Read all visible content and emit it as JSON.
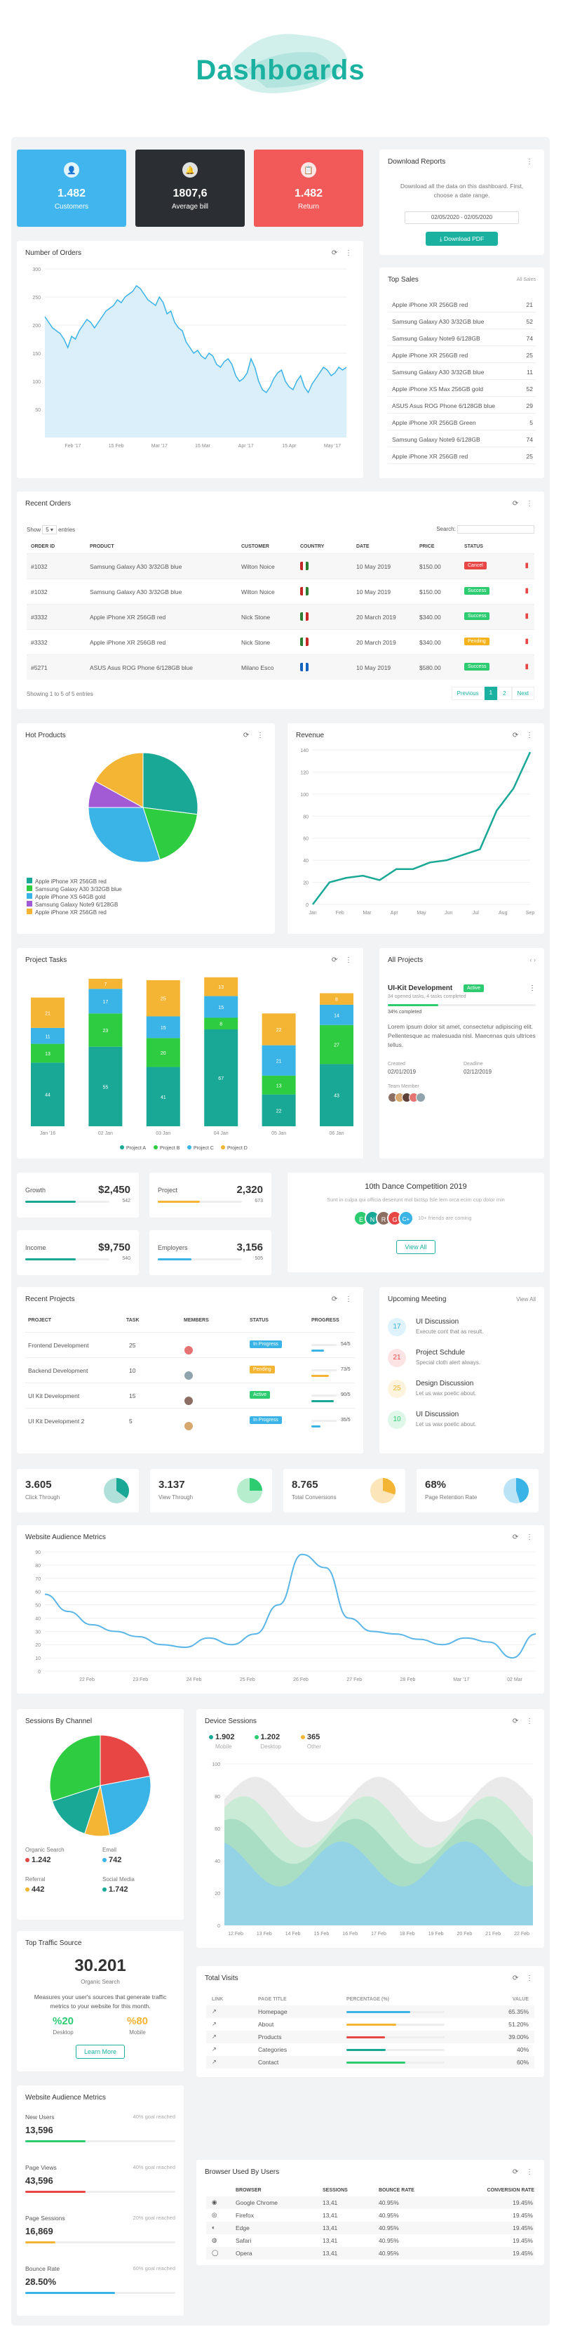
{
  "page_title": "Dashboards",
  "stats": [
    {
      "value": "1.482",
      "label": "Customers",
      "icon": "👤"
    },
    {
      "value": "1807,6",
      "label": "Average bill",
      "icon": "🔔"
    },
    {
      "value": "1.482",
      "label": "Return",
      "icon": "📋"
    }
  ],
  "download": {
    "title": "Download Reports",
    "desc": "Download all the data on this dashboard. First, choose a date range.",
    "date": "02/05/2020 - 02/05/2020",
    "button": "Download PDF"
  },
  "orders_chart": {
    "title": "Number of Orders",
    "yticks": [
      "300",
      "250",
      "200",
      "150",
      "100",
      "50"
    ],
    "xticks": [
      "Feb '17",
      "15 Feb",
      "Mar '17",
      "15 Mar",
      "Apr '17",
      "15 Apr",
      "May '17"
    ],
    "values": [
      215,
      205,
      195,
      190,
      185,
      175,
      160,
      180,
      175,
      190,
      200,
      210,
      205,
      195,
      205,
      215,
      225,
      230,
      235,
      245,
      240,
      250,
      255,
      260,
      270,
      265,
      255,
      245,
      240,
      235,
      250,
      240,
      220,
      225,
      205,
      195,
      190,
      170,
      160,
      150,
      155,
      145,
      140,
      150,
      145,
      130,
      125,
      135,
      140,
      130,
      110,
      100,
      105,
      115,
      140,
      125,
      100,
      85,
      80,
      90,
      105,
      115,
      120,
      100,
      90,
      85,
      100,
      110,
      90,
      80,
      95,
      105,
      115,
      125,
      120,
      110,
      115,
      125,
      120,
      125
    ]
  },
  "top_sales": {
    "title": "Top Sales",
    "all": "All Sales",
    "items": [
      {
        "n": "Apple iPhone XR 256GB red",
        "v": "21"
      },
      {
        "n": "Samsung Galaxy A30 3/32GB blue",
        "v": "52"
      },
      {
        "n": "Samsung Galaxy Note9 6/128GB",
        "v": "74"
      },
      {
        "n": "Apple iPhone XR 256GB red",
        "v": "25"
      },
      {
        "n": "Samsung Galaxy A30 3/32GB blue",
        "v": "11"
      },
      {
        "n": "Apple iPhone XS Max 256GB gold",
        "v": "52"
      },
      {
        "n": "ASUS Asus ROG Phone 6/128GB blue",
        "v": "29"
      },
      {
        "n": "Apple iPhone XR 256GB Green",
        "v": "5"
      },
      {
        "n": "Samsung Galaxy Note9 6/128GB",
        "v": "74"
      },
      {
        "n": "Apple iPhone XR 256GB red",
        "v": "25"
      }
    ]
  },
  "recent_orders": {
    "title": "Recent Orders",
    "show": "Show",
    "entries": "entries",
    "search": "Search:",
    "headers": [
      "ORDER ID",
      "PRODUCT",
      "CUSTOMER",
      "COUNTRY",
      "DATE",
      "PRICE",
      "STATUS"
    ],
    "rows": [
      {
        "id": "#1032",
        "p": "Samsung Galaxy A30 3/32GB blue",
        "c": "Wilton Noice",
        "d": "10 May 2019",
        "pr": "$150.00",
        "s": "Cancel",
        "sc": "#e84545",
        "f": [
          "#c62828",
          "#2e7d32"
        ]
      },
      {
        "id": "#1032",
        "p": "Samsung Galaxy A30 3/32GB blue",
        "c": "Wilton Noice",
        "d": "10 May 2019",
        "pr": "$150.00",
        "s": "Success",
        "sc": "#2ecc71",
        "f": [
          "#c62828",
          "#2e7d32"
        ]
      },
      {
        "id": "#3332",
        "p": "Apple iPhone XR 256GB red",
        "c": "Nick Stone",
        "d": "20 March 2019",
        "pr": "$340.00",
        "s": "Success",
        "sc": "#2ecc71",
        "f": [
          "#2e7d32",
          "#c62828"
        ]
      },
      {
        "id": "#3332",
        "p": "Apple iPhone XR 256GB red",
        "c": "Nick Stone",
        "d": "20 March 2019",
        "pr": "$340.00",
        "s": "Pending",
        "sc": "#f5b21b",
        "f": [
          "#2e7d32",
          "#c62828"
        ]
      },
      {
        "id": "#5271",
        "p": "ASUS Asus ROG Phone 6/128GB blue",
        "c": "Milano Esco",
        "d": "10 May 2019",
        "pr": "$580.00",
        "s": "Success",
        "sc": "#2ecc71",
        "f": [
          "#1565c0",
          "#1565c0"
        ]
      }
    ],
    "showing": "Showing 1 to 5 of 5 entries",
    "prev": "Previous",
    "p1": "1",
    "p2": "2",
    "next": "Next"
  },
  "hot_products": {
    "title": "Hot Products",
    "legend": [
      "Apple iPhone XR 256GB red",
      "Samsung Galaxy A30 3/32GB blue",
      "Apple iPhone XS 64GB gold",
      "Samsung Galaxy Note9 6/128GB",
      "Apple iPhone XR 256GB red"
    ],
    "colors": [
      "#1aa896",
      "#2ecc40",
      "#3ab3e6",
      "#a25bd5",
      "#f5b534"
    ],
    "values": [
      27,
      18,
      30,
      8,
      17
    ]
  },
  "revenue": {
    "title": "Revenue",
    "yticks": [
      "140",
      "120",
      "100",
      "80",
      "60",
      "40",
      "20",
      "0"
    ],
    "xticks": [
      "Jan",
      "Feb",
      "Mar",
      "Apr",
      "May",
      "Jun",
      "Jul",
      "Aug",
      "Sep"
    ],
    "values": [
      0,
      20,
      24,
      26,
      22,
      32,
      32,
      38,
      40,
      45,
      50,
      85,
      105,
      138
    ]
  },
  "tasks": {
    "title": "Project Tasks",
    "xticks": [
      "Jan '16",
      "02 Jan",
      "03 Jan",
      "04 Jan",
      "05 Jan",
      "06 Jan"
    ],
    "series": [
      {
        "name": "Project A",
        "color": "#1aa896",
        "values": [
          44,
          55,
          41,
          67,
          22,
          43
        ]
      },
      {
        "name": "Project B",
        "color": "#2ecc40",
        "values": [
          13,
          23,
          20,
          8,
          13,
          27
        ]
      },
      {
        "name": "Project C",
        "color": "#3ab3e6",
        "values": [
          11,
          17,
          15,
          15,
          21,
          14
        ]
      },
      {
        "name": "Project D",
        "color": "#f5b534",
        "values": [
          21,
          7,
          25,
          13,
          22,
          8
        ]
      }
    ]
  },
  "all_projects": {
    "title": "All Projects",
    "name": "UI-Kit Development",
    "status": "Active",
    "sub": "34 opened tasks, 4 tasks completed",
    "progress": "34% completed",
    "progress_val": 0.34,
    "desc": "Lorem ipsum dolor sit amet, consectetur adipiscing elit. Pellentesque ac malesuada nisl. Maecenas quis ultrices tellus.",
    "created_l": "Created",
    "created": "02/01/2019",
    "deadline_l": "Deadline",
    "deadline": "02/12/2019",
    "team_l": "Team Member"
  },
  "small_stats": [
    {
      "l": "Growth",
      "v": "$2,450",
      "s": "542",
      "c": "#1aa896",
      "p": 0.6
    },
    {
      "l": "Project",
      "v": "2,320",
      "s": "673",
      "c": "#f5b534",
      "p": 0.5
    },
    {
      "l": "Income",
      "v": "$9,750",
      "s": "540",
      "c": "#1aa896",
      "p": 0.6
    },
    {
      "l": "Employers",
      "v": "3,156",
      "s": "505",
      "c": "#3ab3e6",
      "p": 0.4
    }
  ],
  "competition": {
    "title": "10th Dance Competition 2019",
    "desc": "Sunt in culpa qui officia deserunt mol bictsp fsle lem orca ecim cup dolor min",
    "avatars": [
      "E",
      "N",
      "R",
      "G"
    ],
    "more": "C+",
    "joining": "10+ friends are coming",
    "button": "View All"
  },
  "recent_projects": {
    "title": "Recent Projects",
    "headers": [
      "PROJECT",
      "TASK",
      "MEMBERS",
      "STATUS",
      "PROGRESS"
    ],
    "rows": [
      {
        "p": "Frontend Development",
        "t": "25",
        "s": "In Progress",
        "sc": "#3ab3e6",
        "pc": "#3ab3e6",
        "pv": "54/5",
        "pp": 0.5
      },
      {
        "p": "Backend Development",
        "t": "10",
        "s": "Pending",
        "sc": "#f5b534",
        "pc": "#f5b534",
        "pv": "73/5",
        "pp": 0.7
      },
      {
        "p": "UI Kit Development",
        "t": "15",
        "s": "Active",
        "sc": "#2ecc71",
        "pc": "#1aa896",
        "pv": "90/5",
        "pp": 0.9
      },
      {
        "p": "UI Kit Development 2",
        "t": "5",
        "s": "In Progress",
        "sc": "#3ab3e6",
        "pc": "#3ab3e6",
        "pv": "35/5",
        "pp": 0.35
      }
    ]
  },
  "meetings": {
    "title": "Upcoming Meeting",
    "all": "View All",
    "items": [
      {
        "d": "17",
        "t": "UI Discussion",
        "s": "Execute cont that as result.",
        "c": "#3ab3e6",
        "bg": "#def3fb"
      },
      {
        "d": "21",
        "t": "Project Schdule",
        "s": "Special cloth alert always.",
        "c": "#e84545",
        "bg": "#fde4e4"
      },
      {
        "d": "25",
        "t": "Design Discussion",
        "s": "Let us wax poetic about.",
        "c": "#f5b534",
        "bg": "#fef3dc"
      },
      {
        "d": "10",
        "t": "UI Discussion",
        "s": "Let us wax poetic about.",
        "c": "#2ecc71",
        "bg": "#dff7e8"
      }
    ]
  },
  "mini": [
    {
      "v": "3.605",
      "l": "Click Through",
      "c": "#1aa896",
      "p": 0.35
    },
    {
      "v": "3.137",
      "l": "View Through",
      "c": "#2ecc71",
      "p": 0.25
    },
    {
      "v": "8.765",
      "l": "Total Conversions",
      "c": "#f5b534",
      "p": 0.3
    },
    {
      "v": "68%",
      "l": "Page Retention Rate",
      "c": "#3ab3e6",
      "p": 0.45
    }
  ],
  "audience": {
    "title": "Website Audience Metrics",
    "yticks": [
      "90",
      "80",
      "70",
      "60",
      "50",
      "40",
      "30",
      "20",
      "10",
      "0"
    ],
    "xticks": [
      "22 Feb",
      "23 Feb",
      "24 Feb",
      "25 Feb",
      "26 Feb",
      "27 Feb",
      "28 Feb",
      "Mar '17",
      "02 Mar"
    ],
    "values": [
      58,
      45,
      35,
      30,
      26,
      20,
      18,
      25,
      20,
      28,
      50,
      88,
      78,
      40,
      30,
      28,
      24,
      20,
      25,
      22,
      10,
      28
    ]
  },
  "sessions": {
    "title": "Sessions By Channel",
    "values": [
      22,
      25,
      8,
      15,
      30
    ],
    "colors": [
      "#e84545",
      "#3ab3e6",
      "#f5b534",
      "#1aa896",
      "#2ecc40"
    ],
    "items": [
      {
        "l": "Organic Search",
        "v": "1.242",
        "c": "#e84545"
      },
      {
        "l": "Email",
        "v": "742",
        "c": "#3ab3e6"
      },
      {
        "l": "Referral",
        "v": "442",
        "c": "#f5b534"
      },
      {
        "l": "Social Media",
        "v": "1.742",
        "c": "#1aa896"
      }
    ]
  },
  "device": {
    "title": "Device Sessions",
    "items": [
      {
        "v": "1.902",
        "l": "Mobile",
        "c": "#1aa896"
      },
      {
        "v": "1.202",
        "l": "Desktop",
        "c": "#2ecc71"
      },
      {
        "v": "365",
        "l": "Other",
        "c": "#f5b534"
      }
    ],
    "yticks": [
      "100",
      "80",
      "60",
      "40",
      "20",
      "0"
    ],
    "xticks": [
      "12 Feb",
      "13 Feb",
      "14 Feb",
      "15 Feb",
      "16 Feb",
      "17 Feb",
      "18 Feb",
      "19 Feb",
      "20 Feb",
      "21 Feb",
      "22 Feb"
    ]
  },
  "traffic": {
    "title": "Top Traffic Source",
    "value": "30.201",
    "label": "Organic Search",
    "desc": "Measures your user's sources that generate traffic metrics to your website for this month.",
    "a": "%20",
    "al": "Desktop",
    "b": "%80",
    "bl": "Mobile",
    "button": "Learn More"
  },
  "visits": {
    "title": "Total Visits",
    "headers": [
      "LINK",
      "PAGE TITLE",
      "PERCENTAGE (%)",
      "VALUE"
    ],
    "rows": [
      {
        "t": "Homepage",
        "v": "65.35%",
        "c": "#3ab3e6",
        "p": 0.65
      },
      {
        "t": "About",
        "v": "51.20%",
        "c": "#f5b534",
        "p": 0.51
      },
      {
        "t": "Products",
        "v": "39.00%",
        "c": "#e84545",
        "p": 0.39
      },
      {
        "t": "Categories",
        "v": "40%",
        "c": "#1aa896",
        "p": 0.4
      },
      {
        "t": "Contact",
        "v": "60%",
        "c": "#2ecc71",
        "p": 0.6
      }
    ]
  },
  "wam": {
    "title": "Website Audience Metrics",
    "items": [
      {
        "l": "New Users",
        "g": "40% goal reached",
        "v": "13,596",
        "c": "#2ecc71",
        "p": 0.4
      },
      {
        "l": "Page Views",
        "g": "40% goal reached",
        "v": "43,596",
        "c": "#e84545",
        "p": 0.4
      },
      {
        "l": "Page Sessions",
        "g": "20% goal reached",
        "v": "16,869",
        "c": "#f5b534",
        "p": 0.2
      },
      {
        "l": "Bounce Rate",
        "g": "60% goal reached",
        "v": "28.50%",
        "c": "#3ab3e6",
        "p": 0.6
      }
    ]
  },
  "browsers": {
    "title": "Browser Used By Users",
    "headers": [
      "BROWSER",
      "SESSIONS",
      "BOUNCE RATE",
      "CONVERSION RATE"
    ],
    "rows": [
      {
        "b": "Google Chrome",
        "s": "13,41",
        "r": "40.95%",
        "c": "19.45%"
      },
      {
        "b": "Firefox",
        "s": "13,41",
        "r": "40.95%",
        "c": "19.45%"
      },
      {
        "b": "Edge",
        "s": "13,41",
        "r": "40.95%",
        "c": "19.45%"
      },
      {
        "b": "Safari",
        "s": "13,41",
        "r": "40.95%",
        "c": "19.45%"
      },
      {
        "b": "Opera",
        "s": "13,41",
        "r": "40.95%",
        "c": "19.45%"
      }
    ]
  },
  "colors": {
    "accent": "#1bb1a1",
    "blue": "#41b5ed",
    "dark": "#2b2f33",
    "red": "#f25a5a"
  }
}
